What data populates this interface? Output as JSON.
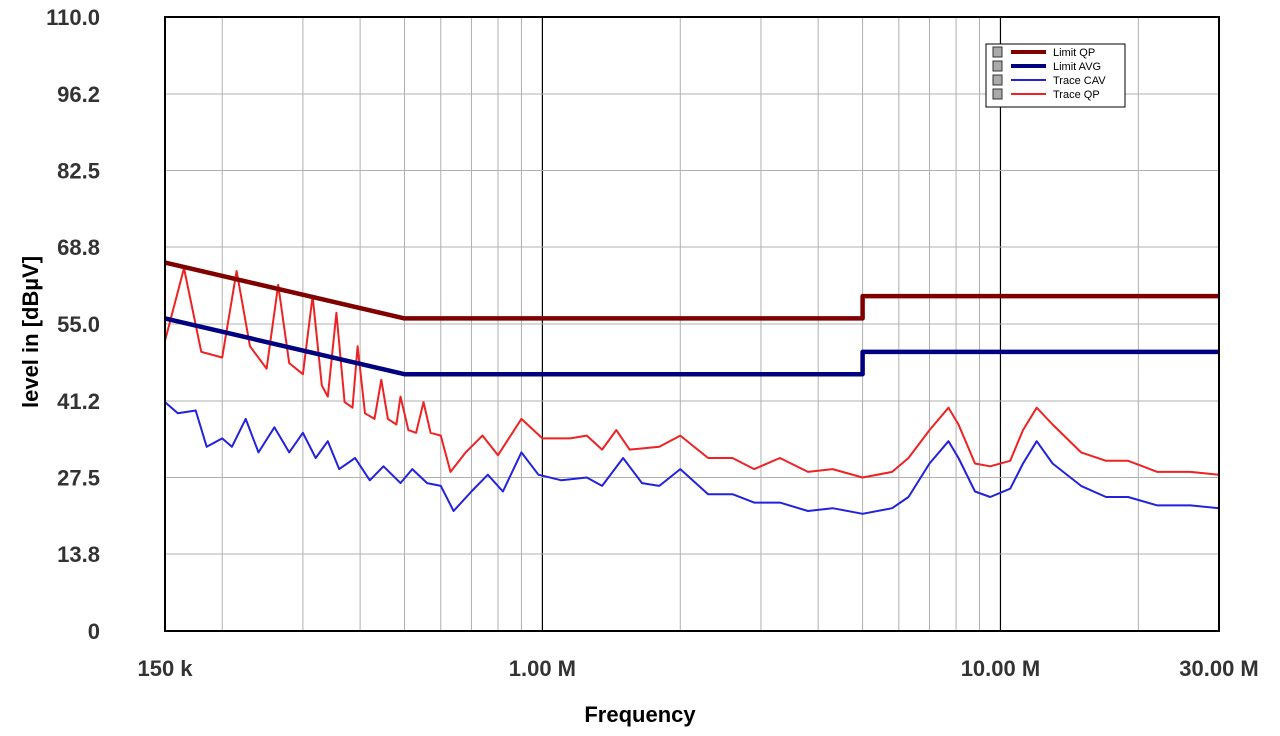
{
  "chart_data": {
    "type": "line",
    "xlabel": "Frequency",
    "ylabel": "level in [dBµV]",
    "x_scale": "log",
    "xlim": [
      150000,
      30000000
    ],
    "ylim": [
      0,
      110
    ],
    "grid": true,
    "x_tick_labels": [
      {
        "value": 150000,
        "label": "150 k"
      },
      {
        "value": 1000000,
        "label": "1.00 M"
      },
      {
        "value": 10000000,
        "label": "10.00 M"
      },
      {
        "value": 30000000,
        "label": "30.00 M"
      }
    ],
    "y_tick_labels": [
      {
        "value": 110.0,
        "label": "110.0"
      },
      {
        "value": 96.2,
        "label": "96.2"
      },
      {
        "value": 82.5,
        "label": "82.5"
      },
      {
        "value": 68.8,
        "label": "68.8"
      },
      {
        "value": 55.0,
        "label": "55.0"
      },
      {
        "value": 41.2,
        "label": "41.2"
      },
      {
        "value": 27.5,
        "label": "27.5"
      },
      {
        "value": 13.8,
        "label": "13.8"
      },
      {
        "value": 0,
        "label": "0"
      }
    ],
    "legend_position": "top-right",
    "series": [
      {
        "name": "Limit QP",
        "color": "#800000",
        "points": [
          [
            150000,
            66
          ],
          [
            500000,
            56
          ],
          [
            5000000,
            56
          ],
          [
            5000000,
            60
          ],
          [
            30000000,
            60
          ]
        ]
      },
      {
        "name": "Limit AVG",
        "color": "#000080",
        "points": [
          [
            150000,
            56
          ],
          [
            500000,
            46
          ],
          [
            5000000,
            46
          ],
          [
            5000000,
            50
          ],
          [
            30000000,
            50
          ]
        ]
      },
      {
        "name": "Trace CAV",
        "color": "#2222dd",
        "points": [
          [
            150000,
            41
          ],
          [
            160000,
            39
          ],
          [
            175000,
            39.5
          ],
          [
            185000,
            33
          ],
          [
            200000,
            34.5
          ],
          [
            210000,
            33
          ],
          [
            225000,
            38
          ],
          [
            240000,
            32
          ],
          [
            260000,
            36.5
          ],
          [
            280000,
            32
          ],
          [
            300000,
            35.5
          ],
          [
            320000,
            31
          ],
          [
            340000,
            34
          ],
          [
            360000,
            29
          ],
          [
            390000,
            31
          ],
          [
            420000,
            27
          ],
          [
            450000,
            29.5
          ],
          [
            490000,
            26.5
          ],
          [
            520000,
            29
          ],
          [
            560000,
            26.5
          ],
          [
            600000,
            26
          ],
          [
            640000,
            21.5
          ],
          [
            700000,
            25
          ],
          [
            760000,
            28
          ],
          [
            820000,
            25
          ],
          [
            900000,
            32
          ],
          [
            980000,
            28
          ],
          [
            1100000,
            27
          ],
          [
            1250000,
            27.5
          ],
          [
            1350000,
            26
          ],
          [
            1500000,
            31
          ],
          [
            1650000,
            26.5
          ],
          [
            1800000,
            26
          ],
          [
            2000000,
            29
          ],
          [
            2300000,
            24.5
          ],
          [
            2600000,
            24.5
          ],
          [
            2900000,
            23
          ],
          [
            3300000,
            23
          ],
          [
            3800000,
            21.5
          ],
          [
            4300000,
            22
          ],
          [
            5000000,
            21
          ],
          [
            5800000,
            22
          ],
          [
            6300000,
            24
          ],
          [
            7000000,
            30
          ],
          [
            7700000,
            34
          ],
          [
            8100000,
            31
          ],
          [
            8800000,
            25
          ],
          [
            9500000,
            24
          ],
          [
            10500000,
            25.5
          ],
          [
            11200000,
            30
          ],
          [
            12000000,
            34
          ],
          [
            13000000,
            30
          ],
          [
            15000000,
            26
          ],
          [
            17000000,
            24
          ],
          [
            19000000,
            24
          ],
          [
            22000000,
            22.5
          ],
          [
            26000000,
            22.5
          ],
          [
            30000000,
            22
          ]
        ]
      },
      {
        "name": "Trace QP",
        "color": "#ee2222",
        "points": [
          [
            150000,
            52
          ],
          [
            165000,
            65
          ],
          [
            180000,
            50
          ],
          [
            200000,
            49
          ],
          [
            215000,
            64.5
          ],
          [
            230000,
            51
          ],
          [
            250000,
            47
          ],
          [
            265000,
            62
          ],
          [
            280000,
            48
          ],
          [
            300000,
            46
          ],
          [
            315000,
            60
          ],
          [
            330000,
            44
          ],
          [
            340000,
            42
          ],
          [
            355000,
            57
          ],
          [
            370000,
            41
          ],
          [
            385000,
            40
          ],
          [
            395000,
            51
          ],
          [
            410000,
            39
          ],
          [
            430000,
            38
          ],
          [
            445000,
            45
          ],
          [
            460000,
            38
          ],
          [
            480000,
            37
          ],
          [
            490000,
            42
          ],
          [
            510000,
            36
          ],
          [
            530000,
            35.5
          ],
          [
            550000,
            41
          ],
          [
            570000,
            35.5
          ],
          [
            600000,
            35
          ],
          [
            630000,
            28.5
          ],
          [
            680000,
            32
          ],
          [
            740000,
            35
          ],
          [
            800000,
            31.5
          ],
          [
            900000,
            38
          ],
          [
            1000000,
            34.5
          ],
          [
            1150000,
            34.5
          ],
          [
            1250000,
            35
          ],
          [
            1350000,
            32.5
          ],
          [
            1450000,
            36
          ],
          [
            1550000,
            32.5
          ],
          [
            1800000,
            33
          ],
          [
            2000000,
            35
          ],
          [
            2300000,
            31
          ],
          [
            2600000,
            31
          ],
          [
            2900000,
            29
          ],
          [
            3300000,
            31
          ],
          [
            3800000,
            28.5
          ],
          [
            4300000,
            29
          ],
          [
            5000000,
            27.5
          ],
          [
            5800000,
            28.5
          ],
          [
            6300000,
            31
          ],
          [
            7000000,
            36
          ],
          [
            7700000,
            40
          ],
          [
            8100000,
            37
          ],
          [
            8800000,
            30
          ],
          [
            9500000,
            29.5
          ],
          [
            10500000,
            30.5
          ],
          [
            11200000,
            36
          ],
          [
            12000000,
            40
          ],
          [
            13000000,
            37
          ],
          [
            15000000,
            32
          ],
          [
            17000000,
            30.5
          ],
          [
            19000000,
            30.5
          ],
          [
            22000000,
            28.5
          ],
          [
            26000000,
            28.5
          ],
          [
            30000000,
            28
          ]
        ]
      }
    ]
  }
}
